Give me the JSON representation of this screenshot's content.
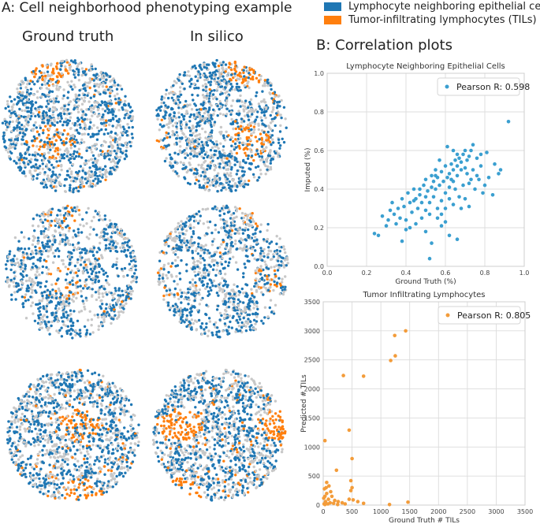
{
  "panelA": {
    "title": "A: Cell neighborhood phenotyping example",
    "columns": [
      "Ground truth",
      "In silico"
    ],
    "legend": [
      {
        "label": "Lymphocyte neighboring epithelial cells",
        "color": "#1f77b4"
      },
      {
        "label": "Tumor-infiltrating lymphocytes (TILs)",
        "color": "#ff7f0e"
      }
    ],
    "background_cell_color": "#c8c8c8"
  },
  "panelB": {
    "title": "B: Correlation plots"
  },
  "chart_data": [
    {
      "type": "scatter",
      "title": "Lymphocyte Neighboring Epithelial Cells",
      "xlabel": "Ground Truth (%)",
      "ylabel": "Imputed (%)",
      "xlim": [
        0.0,
        1.0
      ],
      "ylim": [
        0.0,
        1.0
      ],
      "xticks": [
        "0.0",
        "0.2",
        "0.4",
        "0.6",
        "0.8",
        "1.0"
      ],
      "yticks": [
        "0.0",
        "0.2",
        "0.4",
        "0.6",
        "0.8",
        "1.0"
      ],
      "legend": "Pearson R: 0.598",
      "legend_position": "top-right",
      "grid": true,
      "color": "#3a9fd0",
      "points": [
        [
          0.92,
          0.75
        ],
        [
          0.88,
          0.5
        ],
        [
          0.87,
          0.48
        ],
        [
          0.84,
          0.37
        ],
        [
          0.81,
          0.59
        ],
        [
          0.78,
          0.52
        ],
        [
          0.76,
          0.47
        ],
        [
          0.74,
          0.63
        ],
        [
          0.73,
          0.6
        ],
        [
          0.72,
          0.57
        ],
        [
          0.71,
          0.55
        ],
        [
          0.7,
          0.6
        ],
        [
          0.69,
          0.58
        ],
        [
          0.68,
          0.54
        ],
        [
          0.68,
          0.5
        ],
        [
          0.67,
          0.56
        ],
        [
          0.66,
          0.52
        ],
        [
          0.66,
          0.47
        ],
        [
          0.65,
          0.55
        ],
        [
          0.64,
          0.5
        ],
        [
          0.64,
          0.44
        ],
        [
          0.63,
          0.53
        ],
        [
          0.62,
          0.48
        ],
        [
          0.62,
          0.41
        ],
        [
          0.61,
          0.46
        ],
        [
          0.6,
          0.52
        ],
        [
          0.6,
          0.38
        ],
        [
          0.59,
          0.44
        ],
        [
          0.58,
          0.49
        ],
        [
          0.58,
          0.34
        ],
        [
          0.57,
          0.42
        ],
        [
          0.56,
          0.46
        ],
        [
          0.56,
          0.3
        ],
        [
          0.55,
          0.4
        ],
        [
          0.54,
          0.44
        ],
        [
          0.54,
          0.36
        ],
        [
          0.53,
          0.41
        ],
        [
          0.52,
          0.33
        ],
        [
          0.51,
          0.39
        ],
        [
          0.5,
          0.36
        ],
        [
          0.5,
          0.29
        ],
        [
          0.49,
          0.42
        ],
        [
          0.48,
          0.33
        ],
        [
          0.47,
          0.37
        ],
        [
          0.46,
          0.3
        ],
        [
          0.45,
          0.35
        ],
        [
          0.44,
          0.4
        ],
        [
          0.43,
          0.28
        ],
        [
          0.42,
          0.33
        ],
        [
          0.41,
          0.38
        ],
        [
          0.4,
          0.24
        ],
        [
          0.39,
          0.31
        ],
        [
          0.38,
          0.35
        ],
        [
          0.37,
          0.25
        ],
        [
          0.36,
          0.3
        ],
        [
          0.34,
          0.27
        ],
        [
          0.33,
          0.33
        ],
        [
          0.31,
          0.24
        ],
        [
          0.3,
          0.21
        ],
        [
          0.28,
          0.26
        ],
        [
          0.26,
          0.16
        ],
        [
          0.24,
          0.17
        ],
        [
          0.5,
          0.18
        ],
        [
          0.53,
          0.12
        ],
        [
          0.58,
          0.21
        ],
        [
          0.6,
          0.23
        ],
        [
          0.62,
          0.16
        ],
        [
          0.66,
          0.14
        ],
        [
          0.7,
          0.35
        ],
        [
          0.72,
          0.43
        ],
        [
          0.75,
          0.4
        ],
        [
          0.77,
          0.45
        ],
        [
          0.79,
          0.38
        ],
        [
          0.8,
          0.42
        ],
        [
          0.82,
          0.46
        ],
        [
          0.85,
          0.53
        ],
        [
          0.57,
          0.55
        ],
        [
          0.55,
          0.5
        ],
        [
          0.63,
          0.45
        ],
        [
          0.65,
          0.4
        ],
        [
          0.67,
          0.36
        ],
        [
          0.69,
          0.42
        ],
        [
          0.71,
          0.48
        ],
        [
          0.74,
          0.5
        ],
        [
          0.76,
          0.56
        ],
        [
          0.78,
          0.58
        ],
        [
          0.6,
          0.3
        ],
        [
          0.58,
          0.27
        ],
        [
          0.56,
          0.25
        ],
        [
          0.52,
          0.27
        ],
        [
          0.48,
          0.25
        ],
        [
          0.45,
          0.22
        ],
        [
          0.42,
          0.2
        ],
        [
          0.4,
          0.19
        ],
        [
          0.38,
          0.13
        ],
        [
          0.52,
          0.04
        ],
        [
          0.61,
          0.62
        ],
        [
          0.64,
          0.6
        ],
        [
          0.66,
          0.58
        ],
        [
          0.7,
          0.51
        ],
        [
          0.73,
          0.45
        ],
        [
          0.55,
          0.47
        ],
        [
          0.53,
          0.47
        ],
        [
          0.5,
          0.45
        ],
        [
          0.47,
          0.4
        ],
        [
          0.44,
          0.34
        ],
        [
          0.62,
          0.35
        ],
        [
          0.64,
          0.32
        ],
        [
          0.68,
          0.3
        ],
        [
          0.72,
          0.31
        ],
        [
          0.35,
          0.22
        ],
        [
          0.32,
          0.29
        ]
      ]
    },
    {
      "type": "scatter",
      "title": "Tumor Infiltrating Lymphocytes",
      "xlabel": "Ground Truth # TILs",
      "ylabel": "Predicted # TILs",
      "xlim": [
        0,
        3500
      ],
      "ylim": [
        0,
        3500
      ],
      "xticks": [
        "0",
        "500",
        "1000",
        "1500",
        "2000",
        "2500",
        "3000",
        "3500"
      ],
      "yticks": [
        "0",
        "500",
        "1000",
        "1500",
        "2000",
        "2500",
        "3000",
        "3500"
      ],
      "legend": "Pearson R: 0.805",
      "legend_position": "top-right",
      "grid": true,
      "color": "#f39c3a",
      "points": [
        [
          1430,
          3000
        ],
        [
          1240,
          2920
        ],
        [
          1250,
          2570
        ],
        [
          1170,
          2490
        ],
        [
          350,
          2230
        ],
        [
          700,
          2220
        ],
        [
          450,
          1290
        ],
        [
          30,
          1110
        ],
        [
          500,
          800
        ],
        [
          230,
          600
        ],
        [
          480,
          420
        ],
        [
          500,
          300
        ],
        [
          480,
          250
        ],
        [
          1470,
          50
        ],
        [
          1150,
          10
        ],
        [
          100,
          330
        ],
        [
          50,
          300
        ],
        [
          20,
          280
        ],
        [
          130,
          230
        ],
        [
          60,
          200
        ],
        [
          30,
          150
        ],
        [
          150,
          150
        ],
        [
          10,
          120
        ],
        [
          90,
          100
        ],
        [
          200,
          80
        ],
        [
          40,
          60
        ],
        [
          260,
          60
        ],
        [
          120,
          40
        ],
        [
          330,
          40
        ],
        [
          15,
          20
        ],
        [
          180,
          30
        ],
        [
          80,
          20
        ],
        [
          380,
          20
        ],
        [
          450,
          100
        ],
        [
          520,
          90
        ],
        [
          600,
          60
        ],
        [
          30,
          10
        ],
        [
          250,
          10
        ],
        [
          700,
          30
        ],
        [
          60,
          390
        ]
      ]
    }
  ]
}
